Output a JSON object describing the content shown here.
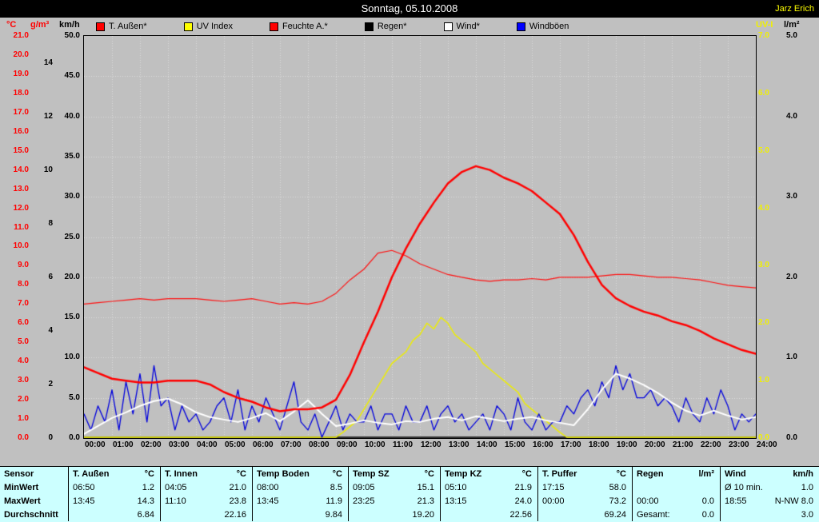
{
  "window": {
    "title": "Sonntag, 05.10.2008",
    "author": "Jarz Erich"
  },
  "colors": {
    "background": "#c0c0c0",
    "titlebar": "#000000",
    "title_text": "#ffffff",
    "author_text": "#ffff00",
    "table_bg": "#ccffff",
    "grid": "#dedede",
    "frame": "#000000"
  },
  "axes": {
    "y": [
      {
        "unit": "°C",
        "color": "#ff0000",
        "max": 21,
        "label_max": 21,
        "step": 1,
        "decimals": 1
      },
      {
        "unit": "g/m³",
        "color": "#ff0000",
        "number_color": "#000000",
        "max": 15,
        "label_max": 14,
        "step": 2,
        "decimals": 0
      },
      {
        "unit": "km/h",
        "color": "#000000",
        "max": 50,
        "label_max": 50,
        "step": 5,
        "decimals": 1
      },
      {
        "unit": "UV-I",
        "color": "#f0f000",
        "max": 7,
        "label_max": 7,
        "step": 1,
        "decimals": 1
      },
      {
        "unit": "l/m²",
        "color": "#000000",
        "max": 5,
        "label_max": 5,
        "step": 1,
        "decimals": 1
      }
    ]
  },
  "legend": {
    "items": [
      {
        "label": "T. Außen*",
        "color": "#ff0000"
      },
      {
        "label": "UV Index",
        "color": "#ffff00"
      },
      {
        "label": "Feuchte A.*",
        "color": "#ff0000"
      },
      {
        "label": "Regen*",
        "color": "#000000"
      },
      {
        "label": "Wind*",
        "color": "#ffffff"
      },
      {
        "label": "Windböen",
        "color": "#0000ff"
      }
    ]
  },
  "chart_data": {
    "type": "line",
    "title": "Sonntag, 05.10.2008",
    "x_range_hours": [
      0,
      24
    ],
    "grid": true,
    "x_tick_labels": [
      "00:00",
      "01:00",
      "02:00",
      "03:00",
      "04:00",
      "05:00",
      "06:00",
      "07:00",
      "08:00",
      "09:00",
      "10:00",
      "11:00",
      "12:00",
      "13:00",
      "14:00",
      "15:00",
      "16:00",
      "17:00",
      "18:00",
      "19:00",
      "20:00",
      "21:00",
      "22:00",
      "23:00",
      "24:00"
    ],
    "series": [
      {
        "name": "Regen",
        "unit": "l/m²",
        "axis_max": 5,
        "color": "#000000",
        "width": 1.5,
        "step_min": 1440,
        "values": [
          0,
          0
        ]
      },
      {
        "name": "UV Index",
        "unit": "UV-I",
        "axis_max": 7,
        "color": "#eded00",
        "width": 1.5,
        "step_min": 15,
        "values": [
          0,
          0,
          0,
          0,
          0,
          0,
          0,
          0,
          0,
          0,
          0,
          0,
          0,
          0,
          0,
          0,
          0,
          0,
          0,
          0,
          0,
          0,
          0,
          0,
          0,
          0,
          0,
          0,
          0,
          0,
          0,
          0,
          0,
          0,
          0,
          0,
          0,
          0.1,
          0.2,
          0.3,
          0.5,
          0.7,
          0.9,
          1.1,
          1.3,
          1.4,
          1.5,
          1.7,
          1.8,
          2.0,
          1.9,
          2.1,
          2.0,
          1.8,
          1.7,
          1.6,
          1.5,
          1.3,
          1.2,
          1.1,
          1.0,
          0.9,
          0.8,
          0.6,
          0.5,
          0.4,
          0.3,
          0.2,
          0.1,
          0,
          0,
          0,
          0,
          0,
          0,
          0,
          0,
          0,
          0,
          0,
          0,
          0,
          0,
          0,
          0,
          0,
          0,
          0,
          0,
          0,
          0,
          0,
          0,
          0,
          0,
          0,
          0
        ]
      },
      {
        "name": "Windböen",
        "unit": "km/h",
        "axis_max": 50,
        "color": "#0000dd",
        "width": 1.3,
        "step_min": 15,
        "values": [
          3,
          1,
          4,
          2,
          6,
          1,
          7,
          3,
          8,
          2,
          9,
          4,
          5,
          1,
          4,
          2,
          3,
          1,
          2,
          4,
          5,
          2,
          6,
          1,
          4,
          2,
          5,
          3,
          1,
          4,
          7,
          2,
          1,
          3,
          0,
          2,
          4,
          1,
          3,
          2,
          2,
          4,
          1,
          3,
          3,
          1,
          4,
          2,
          2,
          4,
          1,
          3,
          4,
          2,
          3,
          1,
          2,
          3,
          1,
          4,
          3,
          1,
          5,
          2,
          1,
          3,
          1,
          2,
          2,
          4,
          3,
          5,
          6,
          4,
          7,
          5,
          9,
          6,
          8,
          5,
          5,
          6,
          4,
          5,
          4,
          2,
          5,
          3,
          2,
          5,
          3,
          6,
          4,
          1,
          3,
          2,
          3
        ]
      },
      {
        "name": "Wind",
        "unit": "km/h",
        "axis_max": 50,
        "color": "#ffffff",
        "width": 2,
        "step_min": 30,
        "values": [
          0.5,
          1.5,
          2.5,
          3.2,
          4.0,
          4.6,
          4.9,
          4.2,
          3.2,
          2.6,
          2.3,
          2.0,
          2.5,
          3.1,
          2.1,
          3.3,
          4.7,
          3.0,
          1.5,
          1.8,
          2.2,
          1.9,
          1.7,
          2.1,
          2.0,
          2.4,
          2.6,
          2.2,
          2.7,
          2.4,
          2.1,
          2.4,
          2.6,
          2.2,
          1.9,
          1.6,
          3.6,
          6.0,
          8.0,
          7.4,
          6.6,
          5.6,
          4.4,
          3.4,
          2.8,
          3.4,
          2.8,
          2.3,
          2.6
        ]
      },
      {
        "name": "Feuchte A.",
        "unit": "g/m³",
        "axis_max": 15,
        "color": "#ff1111",
        "width": 1.2,
        "step_min": 30,
        "values": [
          5.0,
          5.05,
          5.1,
          5.15,
          5.2,
          5.15,
          5.2,
          5.2,
          5.2,
          5.15,
          5.1,
          5.15,
          5.2,
          5.1,
          5.0,
          5.05,
          5.0,
          5.1,
          5.4,
          5.9,
          6.3,
          6.9,
          7.0,
          6.8,
          6.5,
          6.3,
          6.1,
          6.0,
          5.9,
          5.85,
          5.9,
          5.9,
          5.95,
          5.9,
          6.0,
          6.0,
          6.0,
          6.05,
          6.1,
          6.1,
          6.05,
          6.0,
          6.0,
          5.95,
          5.9,
          5.8,
          5.7,
          5.65,
          5.6
        ]
      },
      {
        "name": "T. Außen",
        "unit": "°C",
        "axis_max": 21,
        "color": "#ff0000",
        "width": 2.5,
        "step_min": 30,
        "values": [
          3.7,
          3.4,
          3.1,
          3.0,
          2.9,
          2.9,
          3.0,
          3.0,
          3.0,
          2.8,
          2.4,
          2.1,
          1.9,
          1.6,
          1.4,
          1.5,
          1.5,
          1.6,
          2.0,
          3.3,
          5.0,
          6.6,
          8.4,
          9.9,
          11.2,
          12.3,
          13.3,
          13.9,
          14.2,
          14.0,
          13.6,
          13.3,
          12.9,
          12.3,
          11.7,
          10.6,
          9.2,
          8.0,
          7.3,
          6.9,
          6.6,
          6.4,
          6.1,
          5.9,
          5.6,
          5.2,
          4.9,
          4.6,
          4.4
        ]
      }
    ]
  },
  "table": {
    "row_headers": [
      "Sensor",
      "MinWert",
      "MaxWert",
      "Durchschnitt"
    ],
    "groups": [
      {
        "name": "T. Außen",
        "unit": "°C",
        "min": [
          "06:50",
          "1.2"
        ],
        "max": [
          "13:45",
          "14.3"
        ],
        "avg": "6.84"
      },
      {
        "name": "T. Innen",
        "unit": "°C",
        "min": [
          "04:05",
          "21.0"
        ],
        "max": [
          "11:10",
          "23.8"
        ],
        "avg": "22.16"
      },
      {
        "name": "Temp Boden",
        "unit": "°C",
        "min": [
          "08:00",
          "8.5"
        ],
        "max": [
          "13:45",
          "11.9"
        ],
        "avg": "9.84"
      },
      {
        "name": "Temp SZ",
        "unit": "°C",
        "min": [
          "09:05",
          "15.1"
        ],
        "max": [
          "23:25",
          "21.3"
        ],
        "avg": "19.20"
      },
      {
        "name": "Temp KZ",
        "unit": "°C",
        "min": [
          "05:10",
          "21.9"
        ],
        "max": [
          "13:15",
          "24.0"
        ],
        "avg": "22.56"
      },
      {
        "name": "T. Puffer",
        "unit": "°C",
        "min": [
          "17:15",
          "58.0"
        ],
        "max": [
          "00:00",
          "73.2"
        ],
        "avg": "69.24"
      },
      {
        "name": "Regen",
        "unit": "l/m²",
        "min": [
          "",
          ""
        ],
        "max": [
          "00:00",
          "0.0"
        ],
        "avg_label": "Gesamt:",
        "avg": "0.0"
      },
      {
        "name": "Wind",
        "unit": "km/h",
        "min": [
          "Ø 10 min.",
          "1.0"
        ],
        "max": [
          "18:55",
          "N-NW 8.0"
        ],
        "avg": "3.0"
      }
    ]
  }
}
